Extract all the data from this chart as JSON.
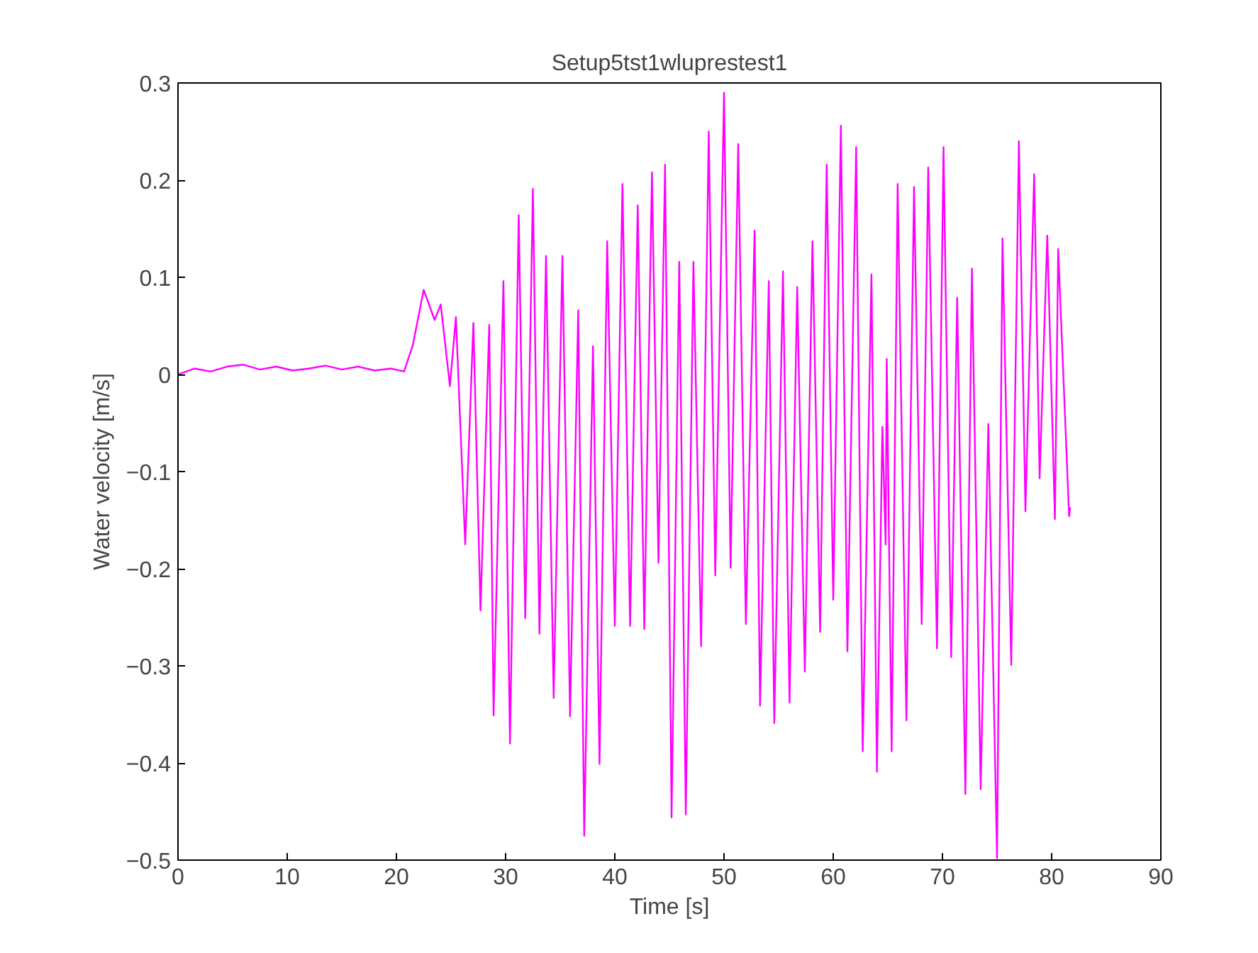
{
  "chart_data": {
    "type": "line",
    "title": "Setup5tst1wluprestest1",
    "xlabel": "Time [s]",
    "ylabel": "Water velocity [m/s]",
    "xlim": [
      0,
      90
    ],
    "ylim": [
      -0.5,
      0.3
    ],
    "xticks": [
      0,
      10,
      20,
      30,
      40,
      50,
      60,
      70,
      80,
      90
    ],
    "yticks": [
      -0.5,
      -0.4,
      -0.3,
      -0.2,
      -0.1,
      0,
      0.1,
      0.2,
      0.3
    ],
    "grid": false,
    "marker": "none",
    "line_style": "solid",
    "series": [
      {
        "color": "#ff00ff",
        "x": [
          0,
          1.5,
          3,
          4.5,
          6,
          7.5,
          9,
          10.5,
          12,
          13.5,
          15,
          16.5,
          18,
          19.5,
          20.7,
          21.5,
          22.5,
          23.5,
          24.06,
          24.9,
          25.45,
          26.3,
          27.05,
          27.7,
          28.5,
          28.9,
          29.8,
          30.4,
          31.2,
          31.8,
          32.5,
          33.1,
          33.7,
          34.4,
          35.2,
          35.9,
          36.65,
          37.2,
          38.0,
          38.6,
          39.3,
          40.0,
          40.7,
          41.4,
          42.1,
          42.7,
          43.4,
          44.0,
          44.6,
          45.2,
          45.9,
          46.5,
          47.2,
          47.9,
          48.6,
          49.2,
          50.0,
          50.6,
          51.3,
          52.0,
          52.8,
          53.3,
          54.1,
          54.6,
          55.4,
          56.0,
          56.7,
          57.4,
          58.1,
          58.8,
          59.4,
          60.0,
          60.7,
          61.3,
          62.1,
          62.7,
          63.5,
          64.0,
          64.5,
          64.8,
          64.9,
          65.35,
          65.9,
          66.7,
          67.4,
          68.1,
          68.7,
          69.5,
          70.1,
          70.8,
          71.35,
          72.1,
          72.7,
          73.5,
          74.2,
          75.0,
          75.5,
          76.3,
          77.0,
          77.6,
          78.4,
          78.9,
          79.6,
          80.3,
          80.6,
          81.6,
          81.7
        ],
        "values": [
          0.0,
          0.006,
          0.003,
          0.008,
          0.01,
          0.005,
          0.008,
          0.004,
          0.006,
          0.009,
          0.005,
          0.008,
          0.004,
          0.006,
          0.003,
          0.03,
          0.087,
          0.056,
          0.072,
          -0.012,
          0.059,
          -0.175,
          0.053,
          -0.243,
          0.051,
          -0.351,
          0.096,
          -0.38,
          0.164,
          -0.251,
          0.191,
          -0.267,
          0.122,
          -0.333,
          0.122,
          -0.352,
          0.066,
          -0.475,
          0.029,
          -0.401,
          0.137,
          -0.259,
          0.196,
          -0.259,
          0.174,
          -0.262,
          0.208,
          -0.194,
          0.216,
          -0.456,
          0.116,
          -0.453,
          0.116,
          -0.28,
          0.25,
          -0.207,
          0.29,
          -0.199,
          0.237,
          -0.257,
          0.148,
          -0.341,
          0.096,
          -0.359,
          0.106,
          -0.338,
          0.09,
          -0.306,
          0.137,
          -0.265,
          0.216,
          -0.232,
          0.256,
          -0.285,
          0.234,
          -0.388,
          0.103,
          -0.409,
          -0.054,
          -0.175,
          0.016,
          -0.388,
          0.196,
          -0.356,
          0.193,
          -0.257,
          0.213,
          -0.282,
          0.234,
          -0.291,
          0.079,
          -0.432,
          0.109,
          -0.427,
          -0.051,
          -0.498,
          0.14,
          -0.299,
          0.24,
          -0.141,
          0.206,
          -0.107,
          0.143,
          -0.149,
          0.129,
          -0.146,
          -0.137
        ]
      }
    ]
  }
}
